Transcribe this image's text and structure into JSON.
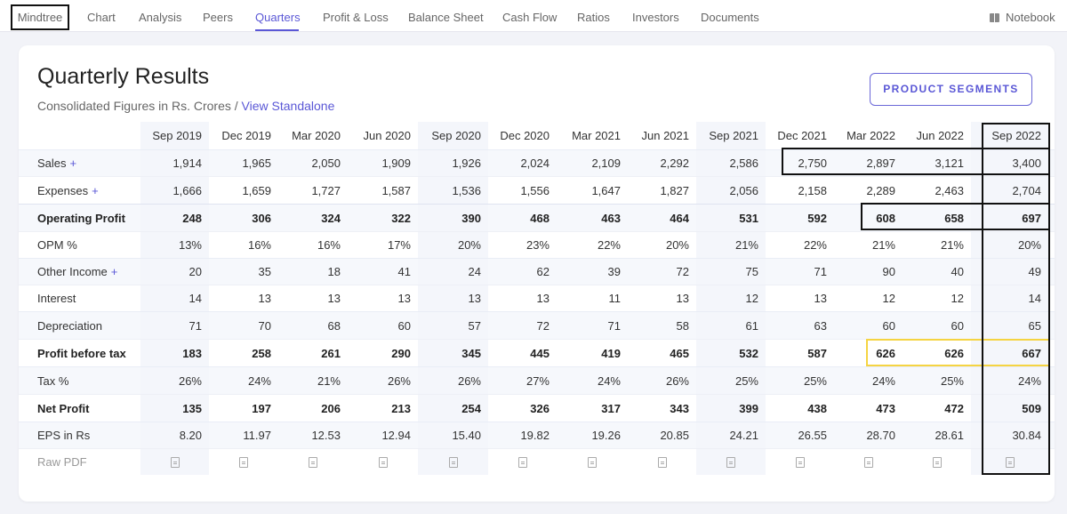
{
  "nav": {
    "company": "Mindtree",
    "items": [
      "Chart",
      "Analysis",
      "Peers",
      "Quarters",
      "Profit & Loss",
      "Balance Sheet",
      "Cash Flow",
      "Ratios",
      "Investors",
      "Documents"
    ],
    "active": "Quarters",
    "notebook": "Notebook"
  },
  "header": {
    "title": "Quarterly Results",
    "subtitle": "Consolidated Figures in Rs. Crores / ",
    "subtitle_link": "View Standalone",
    "segments_button": "PRODUCT SEGMENTS"
  },
  "table": {
    "columns": [
      "Sep 2019",
      "Dec 2019",
      "Mar 2020",
      "Jun 2020",
      "Sep 2020",
      "Dec 2020",
      "Mar 2021",
      "Jun 2021",
      "Sep 2021",
      "Dec 2021",
      "Mar 2022",
      "Jun 2022",
      "Sep 2022"
    ],
    "rows": [
      {
        "label": "Sales",
        "plus": "+",
        "values": [
          "1,914",
          "1,965",
          "2,050",
          "1,909",
          "1,926",
          "2,024",
          "2,109",
          "2,292",
          "2,586",
          "2,750",
          "2,897",
          "3,121",
          "3,400"
        ]
      },
      {
        "label": "Expenses",
        "plus": "+",
        "values": [
          "1,666",
          "1,659",
          "1,727",
          "1,587",
          "1,536",
          "1,556",
          "1,647",
          "1,827",
          "2,056",
          "2,158",
          "2,289",
          "2,463",
          "2,704"
        ]
      },
      {
        "label": "Operating Profit",
        "values": [
          "248",
          "306",
          "324",
          "322",
          "390",
          "468",
          "463",
          "464",
          "531",
          "592",
          "608",
          "658",
          "697"
        ]
      },
      {
        "label": "OPM %",
        "values": [
          "13%",
          "16%",
          "16%",
          "17%",
          "20%",
          "23%",
          "22%",
          "20%",
          "21%",
          "22%",
          "21%",
          "21%",
          "20%"
        ]
      },
      {
        "label": "Other Income",
        "plus": "+",
        "values": [
          "20",
          "35",
          "18",
          "41",
          "24",
          "62",
          "39",
          "72",
          "75",
          "71",
          "90",
          "40",
          "49"
        ]
      },
      {
        "label": "Interest",
        "values": [
          "14",
          "13",
          "13",
          "13",
          "13",
          "13",
          "11",
          "13",
          "12",
          "13",
          "12",
          "12",
          "14"
        ]
      },
      {
        "label": "Depreciation",
        "values": [
          "71",
          "70",
          "68",
          "60",
          "57",
          "72",
          "71",
          "58",
          "61",
          "63",
          "60",
          "60",
          "65"
        ]
      },
      {
        "label": "Profit before tax",
        "values": [
          "183",
          "258",
          "261",
          "290",
          "345",
          "445",
          "419",
          "465",
          "532",
          "587",
          "626",
          "626",
          "667"
        ]
      },
      {
        "label": "Tax %",
        "values": [
          "26%",
          "24%",
          "21%",
          "26%",
          "26%",
          "27%",
          "24%",
          "26%",
          "25%",
          "25%",
          "24%",
          "25%",
          "24%"
        ]
      },
      {
        "label": "Net Profit",
        "values": [
          "135",
          "197",
          "206",
          "213",
          "254",
          "326",
          "317",
          "343",
          "399",
          "438",
          "473",
          "472",
          "509"
        ]
      },
      {
        "label": "EPS in Rs",
        "values": [
          "8.20",
          "11.97",
          "12.53",
          "12.94",
          "15.40",
          "19.82",
          "19.26",
          "20.85",
          "24.21",
          "26.55",
          "28.70",
          "28.61",
          "30.84"
        ]
      },
      {
        "label": "Raw PDF",
        "icon": "pdf-icon"
      }
    ]
  },
  "colors": {
    "accent": "#5a57d6",
    "annotation_black": "#111111",
    "annotation_yellow": "#f5d442"
  }
}
